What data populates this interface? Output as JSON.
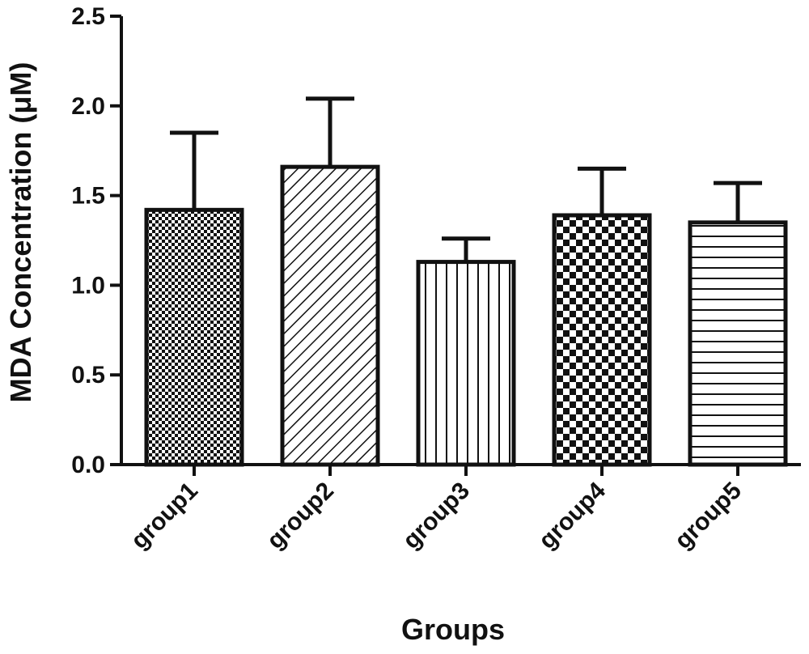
{
  "chart_data": {
    "type": "bar",
    "title": "",
    "xlabel": "Groups",
    "ylabel": "MDA Concentration (μM)",
    "categories": [
      "group1",
      "group2",
      "group3",
      "group4",
      "group5"
    ],
    "values": [
      1.42,
      1.66,
      1.13,
      1.39,
      1.35
    ],
    "error_upper": [
      0.43,
      0.38,
      0.13,
      0.26,
      0.22
    ],
    "patterns": [
      "fine-check",
      "diagonal",
      "vertical",
      "checker",
      "horizontal"
    ],
    "ylim": [
      0,
      2.5
    ],
    "yticks": [
      "0.0",
      "0.5",
      "1.0",
      "1.5",
      "2.0",
      "2.5"
    ],
    "grid": false,
    "legend": "none",
    "colors": {
      "ink": "#111111",
      "fill": "#ffffff"
    }
  }
}
